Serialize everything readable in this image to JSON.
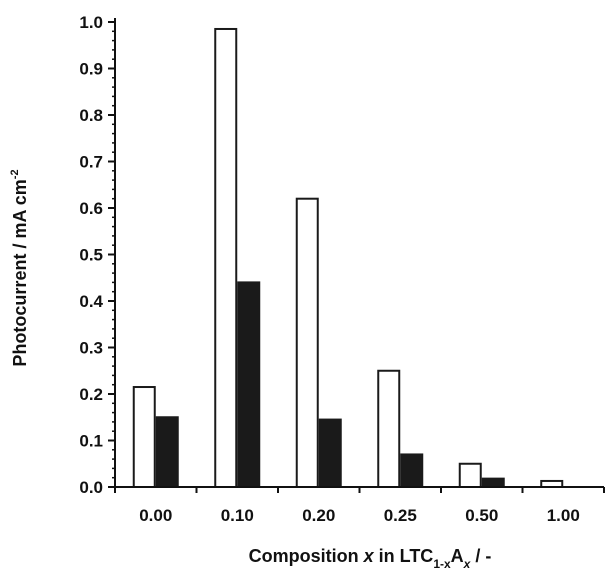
{
  "chart_data": {
    "type": "bar",
    "categories": [
      "0.00",
      "0.10",
      "0.20",
      "0.25",
      "0.50",
      "1.00"
    ],
    "series": [
      {
        "values": [
          0.215,
          0.985,
          0.62,
          0.25,
          0.05,
          0.013
        ],
        "fill": "#ffffff",
        "stroke": "#1a1a1a"
      },
      {
        "values": [
          0.15,
          0.44,
          0.145,
          0.07,
          0.018,
          0.0
        ],
        "fill": "#1a1a1a",
        "stroke": "#1a1a1a"
      }
    ],
    "ylim": [
      0,
      1.0
    ],
    "yticks": [
      "0.0",
      "0.1",
      "0.2",
      "0.3",
      "0.4",
      "0.5",
      "0.6",
      "0.7",
      "0.8",
      "0.9",
      "1.0"
    ],
    "ylabel": {
      "main": "Photocurrent / mA cm",
      "sup": "-2"
    },
    "xlabel": {
      "pre": "Composition ",
      "var": "x",
      "mid": " in LTC",
      "sub": "1-x",
      "a": "A",
      "sub2": "x",
      "post": " / -"
    },
    "grid": false,
    "legend": "none"
  }
}
